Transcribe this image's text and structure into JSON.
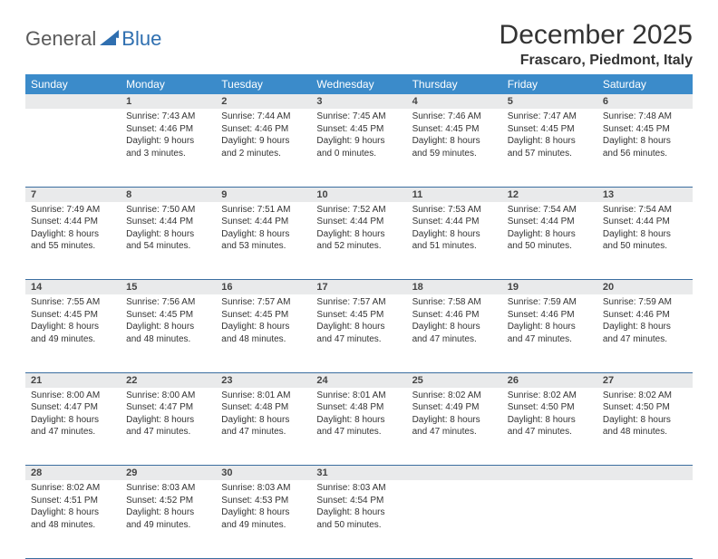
{
  "logo": {
    "part1": "General",
    "part2": "Blue"
  },
  "title": "December 2025",
  "location": "Frascaro, Piedmont, Italy",
  "colors": {
    "header_bg": "#3b8bca",
    "header_fg": "#ffffff",
    "daynum_bg": "#e9eaeb",
    "rule": "#3b6ea0",
    "logo_gray": "#5a5a5a",
    "logo_blue": "#2f6fb0"
  },
  "weekdays": [
    "Sunday",
    "Monday",
    "Tuesday",
    "Wednesday",
    "Thursday",
    "Friday",
    "Saturday"
  ],
  "weeks": [
    {
      "nums": [
        "",
        "1",
        "2",
        "3",
        "4",
        "5",
        "6"
      ],
      "cells": [
        null,
        {
          "sunrise": "7:43 AM",
          "sunset": "4:46 PM",
          "dlh": "9",
          "dlm": "3"
        },
        {
          "sunrise": "7:44 AM",
          "sunset": "4:46 PM",
          "dlh": "9",
          "dlm": "2"
        },
        {
          "sunrise": "7:45 AM",
          "sunset": "4:45 PM",
          "dlh": "9",
          "dlm": "0"
        },
        {
          "sunrise": "7:46 AM",
          "sunset": "4:45 PM",
          "dlh": "8",
          "dlm": "59"
        },
        {
          "sunrise": "7:47 AM",
          "sunset": "4:45 PM",
          "dlh": "8",
          "dlm": "57"
        },
        {
          "sunrise": "7:48 AM",
          "sunset": "4:45 PM",
          "dlh": "8",
          "dlm": "56"
        }
      ]
    },
    {
      "nums": [
        "7",
        "8",
        "9",
        "10",
        "11",
        "12",
        "13"
      ],
      "cells": [
        {
          "sunrise": "7:49 AM",
          "sunset": "4:44 PM",
          "dlh": "8",
          "dlm": "55"
        },
        {
          "sunrise": "7:50 AM",
          "sunset": "4:44 PM",
          "dlh": "8",
          "dlm": "54"
        },
        {
          "sunrise": "7:51 AM",
          "sunset": "4:44 PM",
          "dlh": "8",
          "dlm": "53"
        },
        {
          "sunrise": "7:52 AM",
          "sunset": "4:44 PM",
          "dlh": "8",
          "dlm": "52"
        },
        {
          "sunrise": "7:53 AM",
          "sunset": "4:44 PM",
          "dlh": "8",
          "dlm": "51"
        },
        {
          "sunrise": "7:54 AM",
          "sunset": "4:44 PM",
          "dlh": "8",
          "dlm": "50"
        },
        {
          "sunrise": "7:54 AM",
          "sunset": "4:44 PM",
          "dlh": "8",
          "dlm": "50"
        }
      ]
    },
    {
      "nums": [
        "14",
        "15",
        "16",
        "17",
        "18",
        "19",
        "20"
      ],
      "cells": [
        {
          "sunrise": "7:55 AM",
          "sunset": "4:45 PM",
          "dlh": "8",
          "dlm": "49"
        },
        {
          "sunrise": "7:56 AM",
          "sunset": "4:45 PM",
          "dlh": "8",
          "dlm": "48"
        },
        {
          "sunrise": "7:57 AM",
          "sunset": "4:45 PM",
          "dlh": "8",
          "dlm": "48"
        },
        {
          "sunrise": "7:57 AM",
          "sunset": "4:45 PM",
          "dlh": "8",
          "dlm": "47"
        },
        {
          "sunrise": "7:58 AM",
          "sunset": "4:46 PM",
          "dlh": "8",
          "dlm": "47"
        },
        {
          "sunrise": "7:59 AM",
          "sunset": "4:46 PM",
          "dlh": "8",
          "dlm": "47"
        },
        {
          "sunrise": "7:59 AM",
          "sunset": "4:46 PM",
          "dlh": "8",
          "dlm": "47"
        }
      ]
    },
    {
      "nums": [
        "21",
        "22",
        "23",
        "24",
        "25",
        "26",
        "27"
      ],
      "cells": [
        {
          "sunrise": "8:00 AM",
          "sunset": "4:47 PM",
          "dlh": "8",
          "dlm": "47"
        },
        {
          "sunrise": "8:00 AM",
          "sunset": "4:47 PM",
          "dlh": "8",
          "dlm": "47"
        },
        {
          "sunrise": "8:01 AM",
          "sunset": "4:48 PM",
          "dlh": "8",
          "dlm": "47"
        },
        {
          "sunrise": "8:01 AM",
          "sunset": "4:48 PM",
          "dlh": "8",
          "dlm": "47"
        },
        {
          "sunrise": "8:02 AM",
          "sunset": "4:49 PM",
          "dlh": "8",
          "dlm": "47"
        },
        {
          "sunrise": "8:02 AM",
          "sunset": "4:50 PM",
          "dlh": "8",
          "dlm": "47"
        },
        {
          "sunrise": "8:02 AM",
          "sunset": "4:50 PM",
          "dlh": "8",
          "dlm": "48"
        }
      ]
    },
    {
      "nums": [
        "28",
        "29",
        "30",
        "31",
        "",
        "",
        ""
      ],
      "cells": [
        {
          "sunrise": "8:02 AM",
          "sunset": "4:51 PM",
          "dlh": "8",
          "dlm": "48"
        },
        {
          "sunrise": "8:03 AM",
          "sunset": "4:52 PM",
          "dlh": "8",
          "dlm": "49"
        },
        {
          "sunrise": "8:03 AM",
          "sunset": "4:53 PM",
          "dlh": "8",
          "dlm": "49"
        },
        {
          "sunrise": "8:03 AM",
          "sunset": "4:54 PM",
          "dlh": "8",
          "dlm": "50"
        },
        null,
        null,
        null
      ]
    }
  ],
  "labels": {
    "sunrise": "Sunrise:",
    "sunset": "Sunset:",
    "daylight": "Daylight:"
  }
}
